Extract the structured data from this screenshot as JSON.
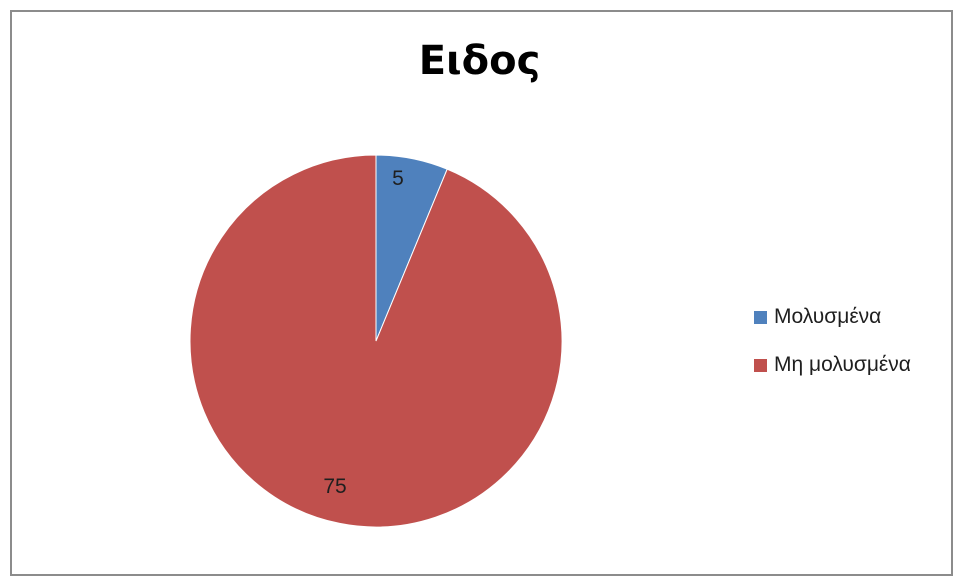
{
  "chart_data": {
    "type": "pie",
    "title": "Ειδος",
    "categories": [
      "Μολυσμένα",
      "Μη μολυσμένα"
    ],
    "values": [
      5,
      75
    ],
    "data_labels": [
      "5",
      "75"
    ],
    "colors": [
      "#4f81bd",
      "#c0504d"
    ],
    "legend_position": "right"
  }
}
